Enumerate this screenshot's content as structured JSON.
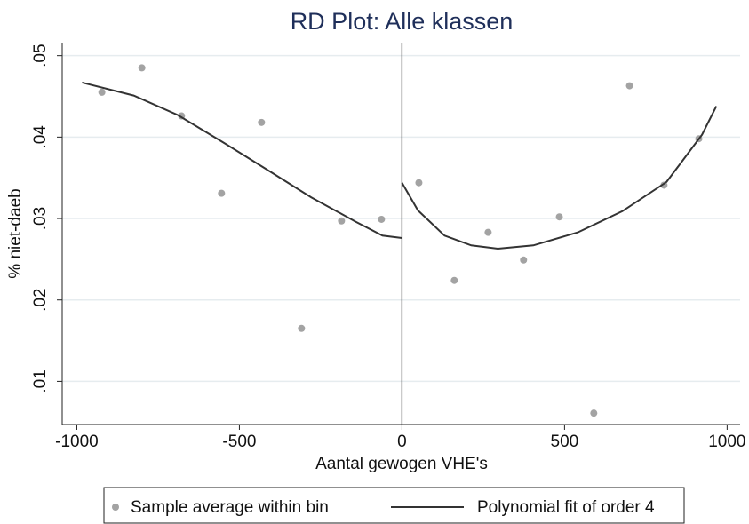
{
  "chart_data": {
    "type": "scatter",
    "title": "RD Plot: Alle klassen",
    "x_label": "Aantal gewogen VHE's",
    "y_label": "% niet-daeb",
    "xlim": [
      -1045,
      1040
    ],
    "ylim": [
      0.0047,
      0.0516
    ],
    "xticks": [
      -1000,
      -500,
      0,
      500,
      1000
    ],
    "yticks": [
      {
        "value": 0.01,
        "label": ".01"
      },
      {
        "value": 0.02,
        "label": ".02"
      },
      {
        "value": 0.03,
        "label": ".03"
      },
      {
        "value": 0.04,
        "label": ".04"
      },
      {
        "value": 0.05,
        "label": ".05"
      }
    ],
    "grid": true,
    "vline": 0,
    "legend": "bottom",
    "series": [
      {
        "name": "Sample average within bin",
        "type": "scatter",
        "color": "#a3a3a3",
        "x": [
          -923,
          -800,
          -678,
          -555,
          -432,
          -309,
          -186,
          -63,
          52,
          161,
          265,
          374,
          484,
          590,
          700,
          806,
          913
        ],
        "values": [
          0.0455,
          0.0485,
          0.0426,
          0.0331,
          0.0418,
          0.0165,
          0.0297,
          0.0299,
          0.0344,
          0.0224,
          0.0283,
          0.0249,
          0.0302,
          0.0061,
          0.0463,
          0.0341,
          0.0398
        ]
      },
      {
        "name": "Polynomial fit of order 4",
        "type": "line",
        "color": "#333333",
        "x": [
          -984,
          -825,
          -689,
          -552,
          -415,
          -279,
          -142,
          -60,
          0,
          null,
          0,
          49,
          131,
          213,
          295,
          404,
          541,
          678,
          814,
          923,
          967
        ],
        "values": [
          0.0467,
          0.0451,
          0.0427,
          0.0394,
          0.036,
          0.0326,
          0.0296,
          0.0279,
          0.0276,
          null,
          0.0344,
          0.031,
          0.0279,
          0.0267,
          0.0263,
          0.0267,
          0.0283,
          0.0309,
          0.0345,
          0.0403,
          0.0438
        ]
      }
    ]
  }
}
